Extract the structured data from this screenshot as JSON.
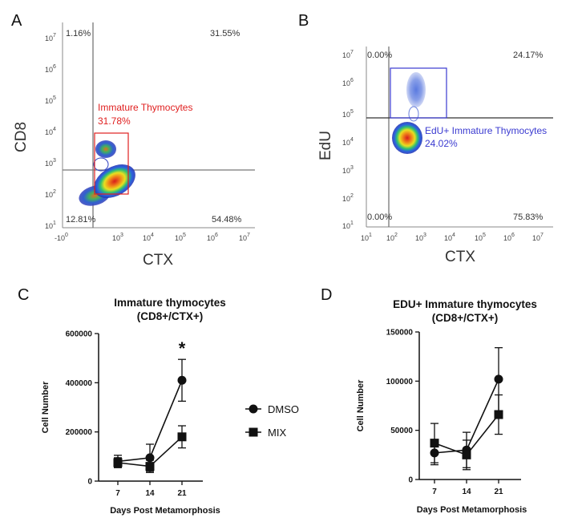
{
  "panels": {
    "A": {
      "letter": "A",
      "ylabel": "CD8",
      "xlabel": "CTX",
      "y_ticks": [
        {
          "base": "10",
          "exp": "1"
        },
        {
          "base": "10",
          "exp": "2"
        },
        {
          "base": "10",
          "exp": "3"
        },
        {
          "base": "10",
          "exp": "4"
        },
        {
          "base": "10",
          "exp": "5"
        },
        {
          "base": "10",
          "exp": "6"
        },
        {
          "base": "10",
          "exp": "7"
        }
      ],
      "x_ticks": [
        {
          "base": "-10",
          "exp": "0"
        },
        {
          "base": "10",
          "exp": "3"
        },
        {
          "base": "10",
          "exp": "4"
        },
        {
          "base": "10",
          "exp": "5"
        },
        {
          "base": "10",
          "exp": "6"
        },
        {
          "base": "10",
          "exp": "7"
        }
      ],
      "quadrants": {
        "top_left": "1.16%",
        "top_right": "31.55%",
        "bottom_left": "12.81%",
        "bottom_right": "54.48%"
      },
      "gate_label": "Immature Thymocytes",
      "gate_value": "31.78%"
    },
    "B": {
      "letter": "B",
      "ylabel": "EdU",
      "xlabel": "CTX",
      "y_ticks": [
        {
          "base": "10",
          "exp": "1"
        },
        {
          "base": "10",
          "exp": "2"
        },
        {
          "base": "10",
          "exp": "3"
        },
        {
          "base": "10",
          "exp": "4"
        },
        {
          "base": "10",
          "exp": "5"
        },
        {
          "base": "10",
          "exp": "6"
        },
        {
          "base": "10",
          "exp": "7"
        }
      ],
      "x_ticks": [
        {
          "base": "10",
          "exp": "1"
        },
        {
          "base": "10",
          "exp": "2"
        },
        {
          "base": "10",
          "exp": "3"
        },
        {
          "base": "10",
          "exp": "4"
        },
        {
          "base": "10",
          "exp": "5"
        },
        {
          "base": "10",
          "exp": "6"
        },
        {
          "base": "10",
          "exp": "7"
        }
      ],
      "quadrants": {
        "top_left": "0.00%",
        "top_right": "24.17%",
        "bottom_left": "0.00%",
        "bottom_right": "75.83%"
      },
      "gate_label": "EdU+ Immature Thymocytes",
      "gate_value": "24.02%"
    }
  },
  "legend": {
    "dmso": "DMSO",
    "mix": "MIX"
  },
  "colors": {
    "flow_red": "#e02020",
    "flow_blue": "#3a3ad0",
    "line_black": "#111111"
  },
  "chart_data": [
    {
      "panel": "C",
      "type": "line",
      "title_line1": "Immature thymocytes",
      "title_line2": "(CD8+/CTX+)",
      "xlabel": "Days Post Metamorphosis",
      "ylabel": "Cell Number",
      "categories": [
        "7",
        "14",
        "21"
      ],
      "ylim": [
        0,
        600000
      ],
      "y_ticks": [
        "0",
        "200000",
        "400000",
        "600000"
      ],
      "significance": "*",
      "series": [
        {
          "name": "DMSO",
          "marker": "circle",
          "values": [
            80000,
            95000,
            410000
          ],
          "errors": [
            25000,
            55000,
            85000
          ]
        },
        {
          "name": "MIX",
          "marker": "square",
          "values": [
            75000,
            60000,
            180000
          ],
          "errors": [
            20000,
            25000,
            45000
          ]
        }
      ]
    },
    {
      "panel": "D",
      "type": "line",
      "title_line1": "EDU+ Immature thymocytes",
      "title_line2": "(CD8+/CTX+)",
      "xlabel": "Days Post Metamorphosis",
      "ylabel": "Cell Number",
      "categories": [
        "7",
        "14",
        "21"
      ],
      "ylim": [
        0,
        150000
      ],
      "y_ticks": [
        "0",
        "50000",
        "100000",
        "150000"
      ],
      "series": [
        {
          "name": "DMSO",
          "marker": "circle",
          "values": [
            27000,
            30000,
            102000
          ],
          "errors": [
            12000,
            18000,
            32000
          ]
        },
        {
          "name": "MIX",
          "marker": "square",
          "values": [
            37000,
            25000,
            66000
          ],
          "errors": [
            20000,
            15000,
            20000
          ]
        }
      ]
    }
  ]
}
